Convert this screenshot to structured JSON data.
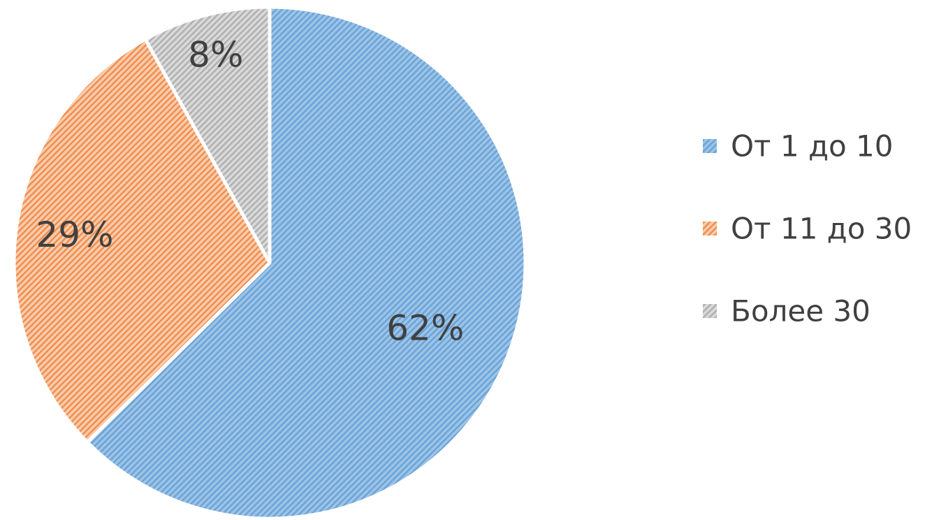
{
  "chart_data": {
    "type": "pie",
    "title": "",
    "slices": [
      {
        "name": "От 1 до 10",
        "value": 62,
        "label": "62%",
        "color": "#9dc3e6",
        "pattern_color": "#5b9bd5"
      },
      {
        "name": "От 11 до 30",
        "value": 29,
        "label": "29%",
        "color": "#f8cbad",
        "pattern_color": "#ed7d31"
      },
      {
        "name": "Более 30",
        "value": 8,
        "label": "8%",
        "color": "#d9d9d9",
        "pattern_color": "#a5a5a5"
      }
    ],
    "start_angle_deg": 0,
    "direction": "clockwise",
    "fill_style": "diagonal-hatch",
    "legend": {
      "position": "right"
    }
  }
}
